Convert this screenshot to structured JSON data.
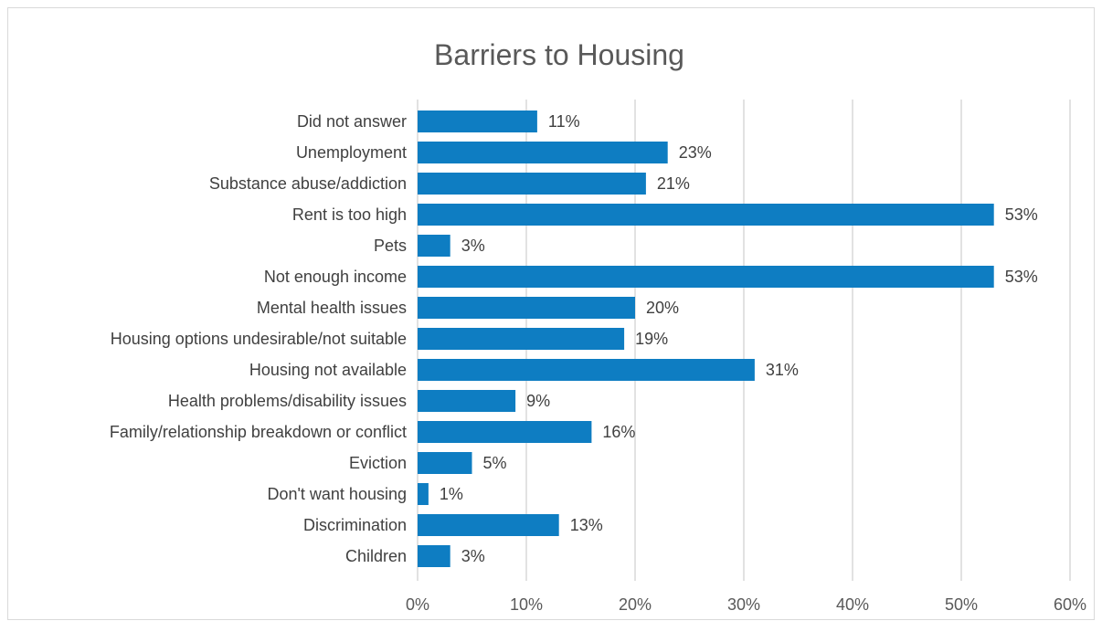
{
  "chart_data": {
    "type": "bar",
    "orientation": "horizontal",
    "title": "Barriers to Housing",
    "categories": [
      "Did not answer",
      "Unemployment",
      "Substance abuse/addiction",
      "Rent is too high",
      "Pets",
      "Not enough income",
      "Mental health issues",
      "Housing options undesirable/not suitable",
      "Housing not available",
      "Health problems/disability issues",
      "Family/relationship breakdown or conflict",
      "Eviction",
      "Don't want housing",
      "Discrimination",
      "Children"
    ],
    "values": [
      11,
      23,
      21,
      53,
      3,
      53,
      20,
      19,
      31,
      9,
      16,
      5,
      1,
      13,
      3
    ],
    "data_labels": [
      "11%",
      "23%",
      "21%",
      "53%",
      "3%",
      "53%",
      "20%",
      "19%",
      "31%",
      "9%",
      "16%",
      "5%",
      "1%",
      "13%",
      "3%"
    ],
    "xlim": [
      0,
      60
    ],
    "x_ticks": [
      0,
      10,
      20,
      30,
      40,
      50,
      60
    ],
    "x_tick_labels": [
      "0%",
      "10%",
      "20%",
      "30%",
      "40%",
      "50%",
      "60%"
    ],
    "xlabel": "",
    "ylabel": "",
    "grid": true,
    "legend": "none",
    "colors": {
      "bar": "#0E7DC2",
      "grid": "#D9D9D9",
      "title": "#595959",
      "text": "#404040"
    }
  }
}
